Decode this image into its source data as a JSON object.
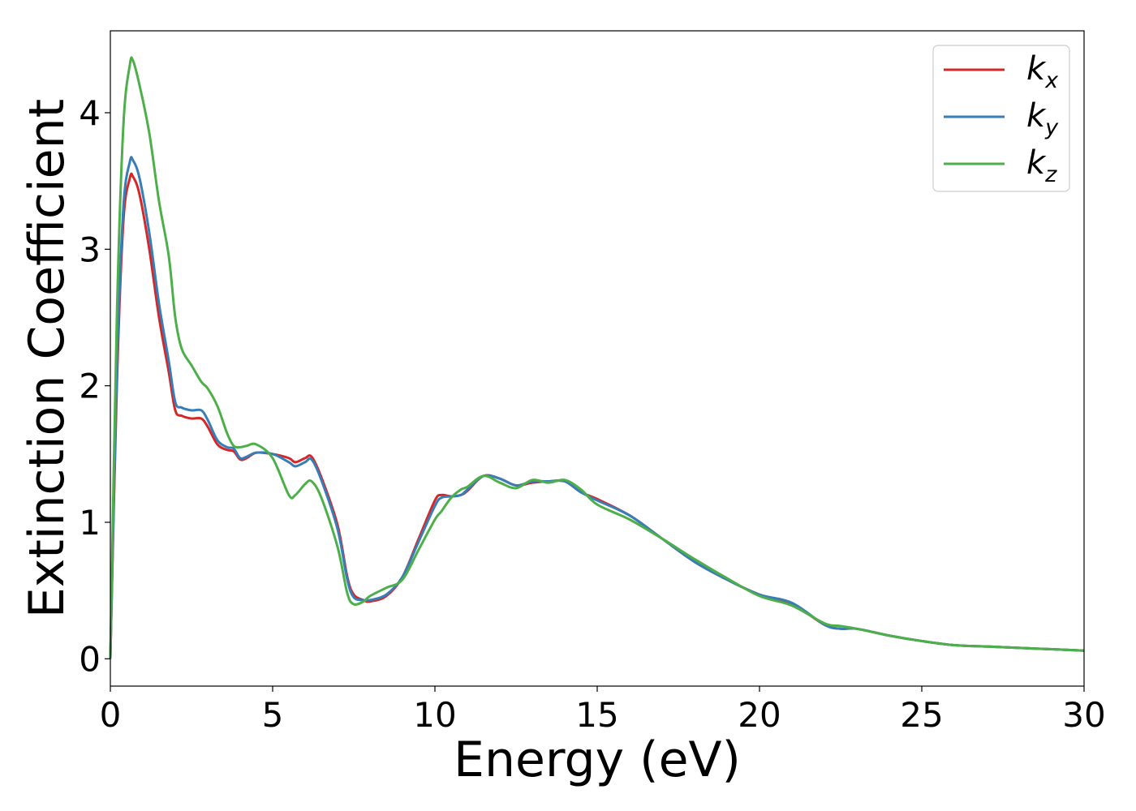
{
  "chart_data": {
    "type": "line",
    "title": "",
    "xlabel": "Energy (eV)",
    "ylabel": "Extinction Coefficient",
    "xlim": [
      0,
      30
    ],
    "ylim": [
      -0.2,
      4.6
    ],
    "xticks": [
      0,
      5,
      10,
      15,
      20,
      25,
      30
    ],
    "yticks": [
      0,
      1,
      2,
      3,
      4
    ],
    "xtick_labels": [
      "0",
      "5",
      "10",
      "15",
      "20",
      "25",
      "30"
    ],
    "ytick_labels": [
      "0",
      "1",
      "2",
      "3",
      "4"
    ],
    "grid": false,
    "legend_position": "top-right",
    "series": [
      {
        "name": "k_x",
        "label_base": "k",
        "label_sub": "x",
        "color": "#d62728",
        "x": [
          0,
          0.2,
          0.4,
          0.6,
          0.7,
          0.9,
          1.2,
          1.5,
          1.8,
          2.0,
          2.2,
          2.5,
          2.8,
          3.0,
          3.3,
          3.6,
          3.8,
          4.0,
          4.2,
          4.5,
          5.0,
          5.5,
          5.7,
          6.0,
          6.2,
          6.5,
          7.0,
          7.3,
          7.5,
          7.8,
          8.0,
          8.5,
          9.0,
          9.5,
          10.0,
          10.2,
          10.5,
          10.8,
          11.0,
          11.5,
          12.0,
          12.5,
          13.0,
          13.5,
          14.0,
          14.5,
          15.0,
          16.0,
          17.0,
          18.0,
          19.0,
          20.0,
          21.0,
          22.0,
          22.5,
          23.0,
          24.0,
          25.0,
          26.0,
          27.0,
          28.0,
          29.0,
          30.0
        ],
        "values": [
          0,
          2.0,
          3.2,
          3.52,
          3.53,
          3.4,
          3.0,
          2.5,
          2.1,
          1.82,
          1.78,
          1.76,
          1.76,
          1.7,
          1.57,
          1.53,
          1.52,
          1.46,
          1.47,
          1.51,
          1.5,
          1.47,
          1.44,
          1.47,
          1.48,
          1.33,
          0.98,
          0.6,
          0.47,
          0.43,
          0.42,
          0.46,
          0.6,
          0.88,
          1.16,
          1.2,
          1.19,
          1.2,
          1.23,
          1.34,
          1.32,
          1.27,
          1.29,
          1.3,
          1.3,
          1.22,
          1.17,
          1.05,
          0.88,
          0.71,
          0.58,
          0.47,
          0.4,
          0.25,
          0.22,
          0.22,
          0.17,
          0.13,
          0.1,
          0.09,
          0.08,
          0.07,
          0.06
        ]
      },
      {
        "name": "k_y",
        "label_base": "k",
        "label_sub": "y",
        "color": "#377eb8",
        "x": [
          0,
          0.2,
          0.4,
          0.6,
          0.7,
          0.9,
          1.2,
          1.5,
          1.8,
          2.0,
          2.2,
          2.5,
          2.8,
          3.0,
          3.3,
          3.6,
          3.8,
          4.0,
          4.2,
          4.5,
          5.0,
          5.5,
          5.7,
          6.0,
          6.2,
          6.5,
          7.0,
          7.3,
          7.5,
          7.8,
          8.0,
          8.5,
          9.0,
          9.5,
          10.0,
          10.2,
          10.5,
          10.8,
          11.0,
          11.5,
          12.0,
          12.5,
          13.0,
          13.5,
          14.0,
          14.5,
          15.0,
          16.0,
          17.0,
          18.0,
          19.0,
          20.0,
          21.0,
          22.0,
          22.5,
          23.0,
          24.0,
          25.0,
          26.0,
          27.0,
          28.0,
          29.0,
          30.0
        ],
        "values": [
          0,
          2.1,
          3.3,
          3.64,
          3.65,
          3.52,
          3.12,
          2.6,
          2.18,
          1.88,
          1.84,
          1.82,
          1.82,
          1.75,
          1.6,
          1.55,
          1.54,
          1.47,
          1.48,
          1.51,
          1.5,
          1.44,
          1.41,
          1.44,
          1.46,
          1.31,
          0.95,
          0.58,
          0.45,
          0.43,
          0.43,
          0.47,
          0.6,
          0.86,
          1.12,
          1.18,
          1.19,
          1.2,
          1.24,
          1.34,
          1.32,
          1.27,
          1.3,
          1.3,
          1.3,
          1.22,
          1.16,
          1.05,
          0.88,
          0.71,
          0.58,
          0.47,
          0.41,
          0.25,
          0.22,
          0.22,
          0.17,
          0.13,
          0.1,
          0.09,
          0.08,
          0.07,
          0.06
        ]
      },
      {
        "name": "k_z",
        "label_base": "k",
        "label_sub": "z",
        "color": "#4daf4a",
        "x": [
          0,
          0.2,
          0.4,
          0.6,
          0.7,
          0.9,
          1.2,
          1.5,
          1.8,
          2.0,
          2.2,
          2.5,
          2.8,
          3.0,
          3.3,
          3.6,
          3.8,
          4.0,
          4.2,
          4.5,
          5.0,
          5.5,
          5.7,
          6.0,
          6.2,
          6.5,
          7.0,
          7.3,
          7.5,
          7.8,
          8.0,
          8.5,
          9.0,
          9.5,
          10.0,
          10.2,
          10.5,
          10.8,
          11.0,
          11.5,
          12.0,
          12.5,
          13.0,
          13.5,
          14.0,
          14.5,
          15.0,
          16.0,
          17.0,
          18.0,
          19.0,
          20.0,
          21.0,
          22.0,
          22.5,
          23.0,
          24.0,
          25.0,
          26.0,
          27.0,
          28.0,
          29.0,
          30.0
        ],
        "values": [
          0,
          2.5,
          3.9,
          4.35,
          4.38,
          4.2,
          3.85,
          3.35,
          2.95,
          2.5,
          2.27,
          2.15,
          2.03,
          1.98,
          1.85,
          1.65,
          1.56,
          1.55,
          1.56,
          1.57,
          1.47,
          1.2,
          1.2,
          1.28,
          1.3,
          1.18,
          0.82,
          0.48,
          0.4,
          0.42,
          0.46,
          0.52,
          0.58,
          0.8,
          1.02,
          1.08,
          1.18,
          1.24,
          1.26,
          1.34,
          1.29,
          1.25,
          1.31,
          1.29,
          1.31,
          1.24,
          1.13,
          1.02,
          0.88,
          0.73,
          0.59,
          0.46,
          0.39,
          0.26,
          0.24,
          0.22,
          0.17,
          0.13,
          0.1,
          0.09,
          0.08,
          0.07,
          0.06
        ]
      }
    ]
  }
}
